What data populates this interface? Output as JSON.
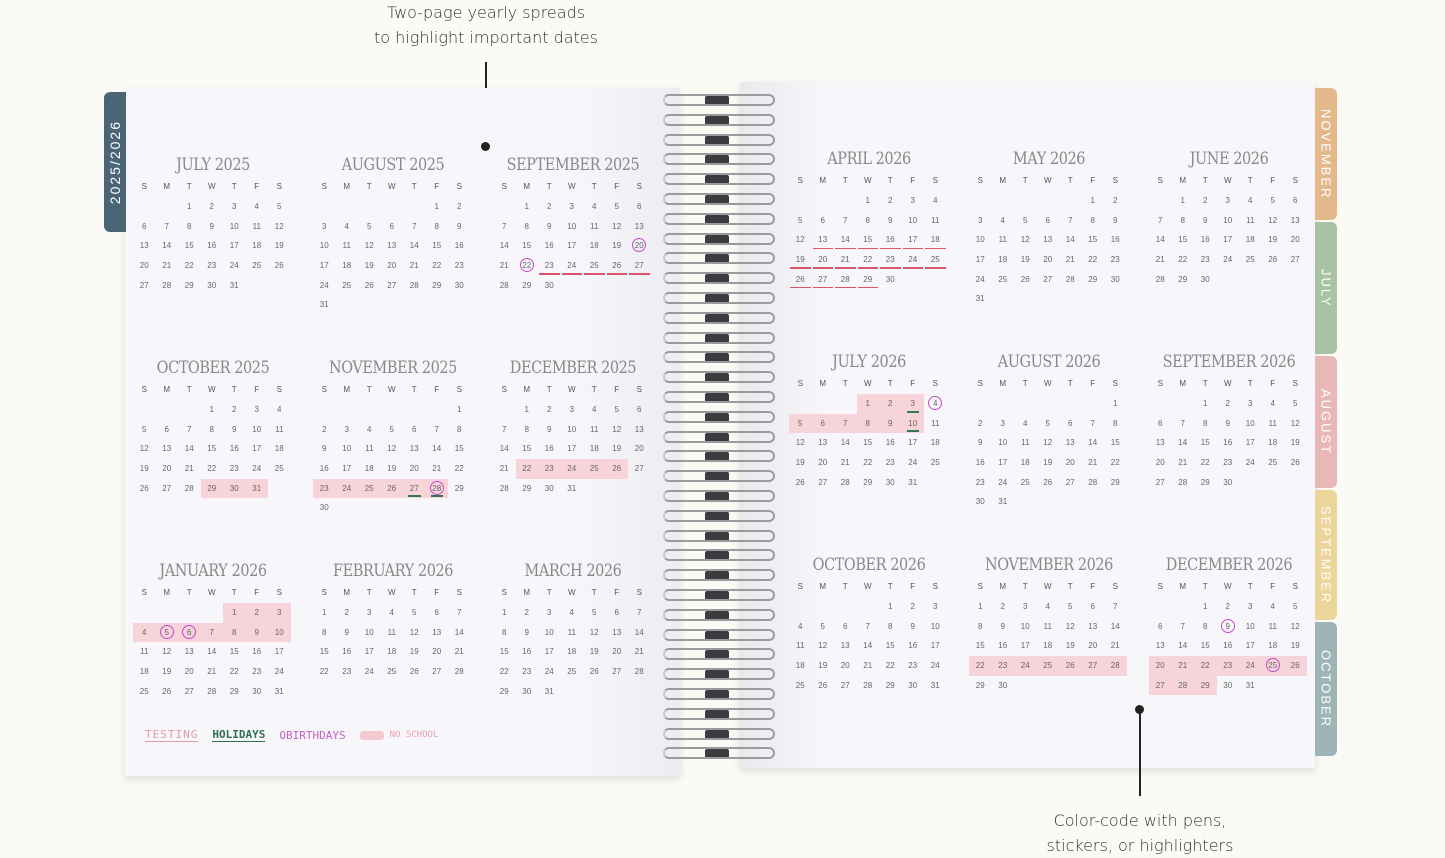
{
  "annotations": {
    "top": [
      "Two-page yearly spreads",
      "to highlight important dates"
    ],
    "bottom": [
      "Color-code with pens,",
      "stickers, or highlighters"
    ]
  },
  "year_tab": "2025/2026",
  "month_tabs": [
    {
      "label": "NOVEMBER",
      "color": "#e3b88b"
    },
    {
      "label": "JULY",
      "color": "#a9c2a4"
    },
    {
      "label": "AUGUST",
      "color": "#e8b8b6"
    },
    {
      "label": "SEPTEMBER",
      "color": "#ecd59a"
    },
    {
      "label": "OCTOBER",
      "color": "#9fb4b7"
    }
  ],
  "weekdays": [
    "S",
    "M",
    "T",
    "W",
    "T",
    "F",
    "S"
  ],
  "colors": {
    "highlight": "#f7d3da",
    "circle": "#c54bc6",
    "underline_red": "#d9566a",
    "underline_green": "#2f7a55"
  },
  "months": [
    {
      "title": "JULY 2025",
      "first_weekday": 2,
      "days": 31
    },
    {
      "title": "AUGUST 2025",
      "first_weekday": 5,
      "days": 31
    },
    {
      "title": "SEPTEMBER 2025",
      "first_weekday": 1,
      "days": 30,
      "circle": [
        20,
        22
      ],
      "underline_red": [
        23,
        24,
        25,
        26,
        27
      ]
    },
    {
      "title": "OCTOBER 2025",
      "first_weekday": 3,
      "days": 31,
      "highlight": [
        29,
        30,
        31
      ]
    },
    {
      "title": "NOVEMBER 2025",
      "first_weekday": 6,
      "days": 30,
      "highlight": [
        23,
        24,
        25,
        26,
        27,
        28
      ],
      "circle": [
        28
      ],
      "underline_green": [
        27,
        28
      ]
    },
    {
      "title": "DECEMBER 2025",
      "first_weekday": 1,
      "days": 31,
      "highlight": [
        22,
        23,
        24,
        25,
        26
      ]
    },
    {
      "title": "JANUARY 2026",
      "first_weekday": 4,
      "days": 31,
      "highlight": [
        1,
        2,
        3,
        4,
        5,
        6,
        7,
        8,
        9,
        10
      ],
      "circle": [
        5,
        6
      ]
    },
    {
      "title": "FEBRUARY 2026",
      "first_weekday": 0,
      "days": 28
    },
    {
      "title": "MARCH 2026",
      "first_weekday": 0,
      "days": 31
    },
    {
      "title": "APRIL 2026",
      "first_weekday": 3,
      "days": 30,
      "underline_red": [
        13,
        14,
        15,
        16,
        17,
        18,
        19,
        20,
        21,
        22,
        23,
        24,
        25,
        26,
        27,
        28,
        29
      ]
    },
    {
      "title": "MAY 2026",
      "first_weekday": 5,
      "days": 31
    },
    {
      "title": "JUNE 2026",
      "first_weekday": 1,
      "days": 30
    },
    {
      "title": "JULY 2026",
      "first_weekday": 3,
      "days": 31,
      "highlight": [
        1,
        2,
        3,
        5,
        6,
        7,
        8,
        9,
        10
      ],
      "circle": [
        4
      ],
      "underline_green": [
        3,
        10
      ]
    },
    {
      "title": "AUGUST 2026",
      "first_weekday": 6,
      "days": 31
    },
    {
      "title": "SEPTEMBER 2026",
      "first_weekday": 2,
      "days": 30
    },
    {
      "title": "OCTOBER 2026",
      "first_weekday": 4,
      "days": 31
    },
    {
      "title": "NOVEMBER 2026",
      "first_weekday": 0,
      "days": 30,
      "highlight": [
        22,
        23,
        24,
        25,
        26,
        27,
        28
      ]
    },
    {
      "title": "DECEMBER 2026",
      "first_weekday": 2,
      "days": 31,
      "highlight": [
        20,
        21,
        22,
        23,
        24,
        25,
        26,
        27,
        28,
        29
      ],
      "circle": [
        9,
        25
      ]
    }
  ],
  "legend": {
    "testing": "TESTING",
    "holidays": "HOLIDAYS",
    "birthdays": "BIRTHDAYS",
    "birthday_symbol": "O",
    "no_school": "NO SCHOOL"
  }
}
